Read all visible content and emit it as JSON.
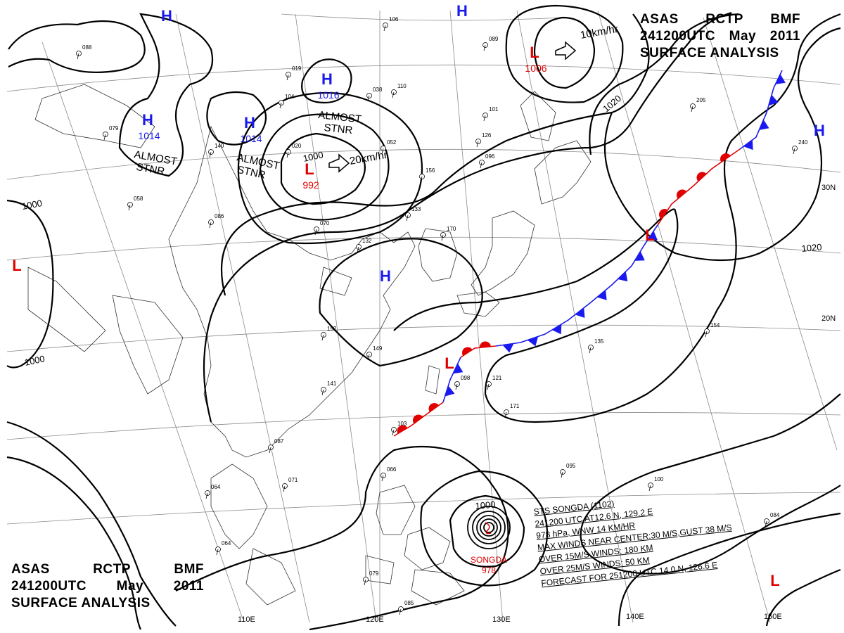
{
  "header": {
    "agency": [
      "ASAS",
      "RCTP",
      "BMF"
    ],
    "time": [
      "241200UTC",
      "May",
      "2011"
    ],
    "product": "SURFACE ANALYSIS"
  },
  "colors": {
    "high": "#1a1aee",
    "low": "#e00000",
    "cold_front": "#1a1aee",
    "warm_front": "#e00000",
    "isobar": "#000000",
    "grid": "#8a8a8a",
    "coast": "#333333"
  },
  "longitudes": [
    "110E",
    "120E",
    "130E",
    "140E",
    "150E"
  ],
  "latitudes": [
    "20N",
    "30N"
  ],
  "pressure_centers": [
    {
      "type": "H",
      "value": "1014"
    },
    {
      "type": "H",
      "value": "1014"
    },
    {
      "type": "H",
      "value": "1016"
    },
    {
      "type": "H",
      "value": ""
    },
    {
      "type": "H",
      "value": ""
    },
    {
      "type": "H",
      "value": ""
    },
    {
      "type": "H",
      "value": ""
    },
    {
      "type": "L",
      "value": "992"
    },
    {
      "type": "L",
      "value": "1006"
    },
    {
      "type": "L",
      "value": ""
    },
    {
      "type": "L",
      "value": ""
    },
    {
      "type": "L",
      "value": ""
    },
    {
      "type": "L",
      "value": ""
    }
  ],
  "isobar_labels": [
    "1000",
    "1000",
    "1000",
    "1020",
    "1020",
    "1000"
  ],
  "annotations": [
    {
      "text": "ALMOST\nSTNR"
    },
    {
      "text": "ALMOST\nSTNR"
    },
    {
      "text": "ALMOST\nSTNR"
    }
  ],
  "motion_arrows": [
    "20km/hr",
    "10km/hr"
  ],
  "typhoon": {
    "name": "SONGDA",
    "pressure": "978",
    "bulletin": [
      "STS  SONGDA  (1102)",
      "241200 UTC  AT12.6 N, 129.2 E",
      "978 hPa, WNW  14 KM/HR",
      "MAX WINDS NEAR CENTER:30 M/S,GUST 38 M/S",
      "OVER 15M/S WINDS: 180 KM",
      "OVER 25M/S WINDS: 50 KM",
      "FORECAST FOR 251200 UTC 14.0 N, 126.6 E"
    ]
  },
  "station_values": [
    "106",
    "088",
    "019",
    "038",
    "089",
    "104",
    "110",
    "101",
    "126",
    "096",
    "052",
    "156",
    "133",
    "170",
    "149",
    "152",
    "141",
    "121",
    "098",
    "103",
    "066",
    "087",
    "071",
    "064",
    "064",
    "085",
    "079",
    "095",
    "100",
    "154",
    "135",
    "171",
    "084",
    "205",
    "240",
    "020",
    "140",
    "079",
    "058",
    "086",
    "070",
    "132"
  ]
}
